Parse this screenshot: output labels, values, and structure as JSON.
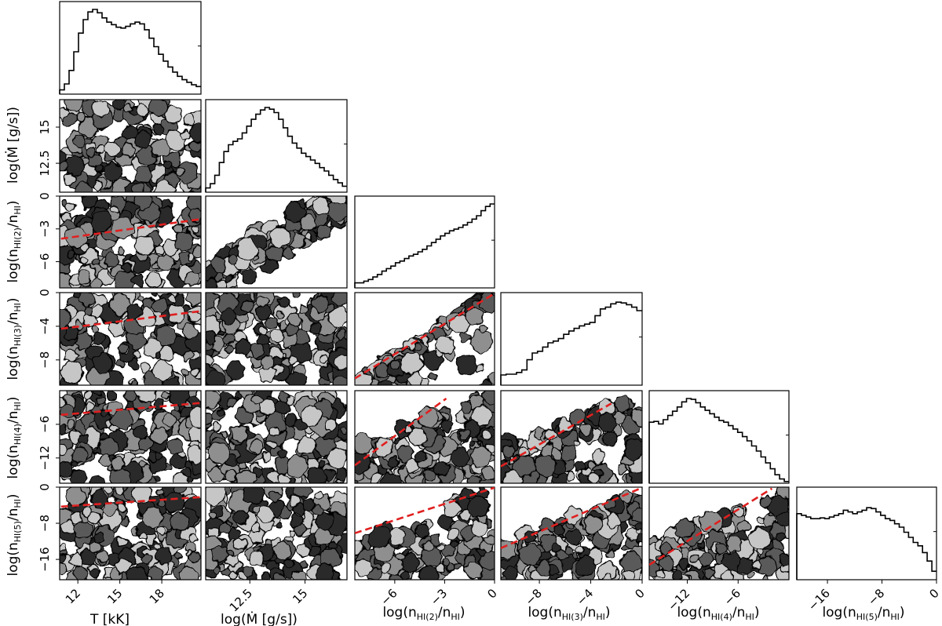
{
  "chart_data": {
    "type": "corner",
    "title": "",
    "parameters": [
      {
        "key": "T",
        "label": "T [kK]",
        "range": [
          10.7,
          20.8
        ],
        "ticks": [
          12,
          15,
          18
        ]
      },
      {
        "key": "Mdot",
        "label": "log(Ṁ [g/s])",
        "label_base": "log(",
        "label_sym": "Ṁ",
        "label_rest": " [g/s])",
        "range": [
          10.5,
          16.9
        ],
        "ticks": [
          12.5,
          15.0
        ]
      },
      {
        "key": "n2",
        "label": "log(nHI(2)/nHI)",
        "sub": "HI(2)",
        "range": [
          -8.4,
          0
        ],
        "ticks": [
          -6,
          -3,
          0
        ]
      },
      {
        "key": "n3",
        "label": "log(nHI(3)/nHI)",
        "sub": "HI(3)",
        "range": [
          -11,
          0
        ],
        "ticks": [
          -8,
          -4,
          0
        ]
      },
      {
        "key": "n4",
        "label": "log(nHI(4)/nHI)",
        "sub": "HI(4)",
        "range": [
          -16.5,
          0
        ],
        "ticks": [
          -12,
          -6
        ]
      },
      {
        "key": "n5",
        "label": "log(nHI(5)/nHI)",
        "sub": "HI(5)",
        "range": [
          -20.5,
          0
        ],
        "ticks": [
          -16,
          -8,
          0
        ]
      }
    ],
    "panel_y_ticks": {
      "Mdot": [
        12.5,
        15.0
      ],
      "n2": [
        0,
        -3,
        -6
      ],
      "n3": [
        0,
        -4,
        -8
      ],
      "n4": [
        -6,
        -12
      ],
      "n5": [
        0,
        -8,
        -16
      ]
    },
    "diagonal_histograms": {
      "T": [
        0.05,
        0.12,
        0.28,
        0.5,
        0.72,
        0.88,
        0.97,
        1.0,
        0.96,
        0.9,
        0.85,
        0.82,
        0.79,
        0.78,
        0.8,
        0.83,
        0.85,
        0.83,
        0.76,
        0.66,
        0.56,
        0.47,
        0.39,
        0.32,
        0.26,
        0.21,
        0.17,
        0.14,
        0.11,
        0.09
      ],
      "Mdot": [
        0.05,
        0.1,
        0.2,
        0.35,
        0.48,
        0.56,
        0.6,
        0.63,
        0.7,
        0.78,
        0.86,
        0.92,
        0.97,
        1.0,
        0.98,
        0.94,
        0.86,
        0.76,
        0.66,
        0.58,
        0.52,
        0.46,
        0.42,
        0.38,
        0.34,
        0.29,
        0.25,
        0.2,
        0.15,
        0.11,
        0.07
      ],
      "n2": [
        0.06,
        0.06,
        0.08,
        0.1,
        0.13,
        0.16,
        0.2,
        0.23,
        0.26,
        0.3,
        0.32,
        0.35,
        0.38,
        0.4,
        0.43,
        0.46,
        0.5,
        0.54,
        0.58,
        0.62,
        0.65,
        0.68,
        0.7,
        0.72,
        0.75,
        0.78,
        0.82,
        0.86,
        0.92,
        0.97,
        1.0
      ],
      "n3": [
        0.12,
        0.13,
        0.13,
        0.15,
        0.18,
        0.3,
        0.38,
        0.4,
        0.45,
        0.5,
        0.52,
        0.55,
        0.6,
        0.64,
        0.67,
        0.7,
        0.72,
        0.74,
        0.82,
        0.9,
        0.92,
        0.96,
        0.98,
        0.97,
        0.95,
        0.92,
        0.88
      ],
      "n4": [
        0.72,
        0.73,
        0.7,
        0.75,
        0.8,
        0.85,
        0.9,
        0.96,
        1.0,
        0.99,
        0.95,
        0.9,
        0.86,
        0.82,
        0.78,
        0.74,
        0.72,
        0.68,
        0.64,
        0.6,
        0.55,
        0.5,
        0.44,
        0.38,
        0.31,
        0.24,
        0.17,
        0.1,
        0.05,
        0.02
      ],
      "n5": [
        0.78,
        0.76,
        0.74,
        0.72,
        0.72,
        0.73,
        0.72,
        0.74,
        0.76,
        0.78,
        0.82,
        0.8,
        0.78,
        0.8,
        0.82,
        0.85,
        0.84,
        0.8,
        0.76,
        0.72,
        0.7,
        0.66,
        0.62,
        0.56,
        0.5,
        0.44,
        0.4,
        0.32,
        0.22,
        0.1
      ]
    },
    "reference_lines": {
      "color": "#e02020",
      "style": "dashed",
      "lines": [
        {
          "row": "n2",
          "col": "T",
          "points": [
            [
              10.8,
              -3.9
            ],
            [
              20.8,
              -2.1
            ]
          ]
        },
        {
          "row": "n3",
          "col": "T",
          "points": [
            [
              10.8,
              -4.3
            ],
            [
              20.8,
              -2.2
            ]
          ]
        },
        {
          "row": "n3",
          "col": "n2",
          "points": [
            [
              -8.4,
              -10.2
            ],
            [
              0,
              -0.1
            ]
          ]
        },
        {
          "row": "n4",
          "col": "T",
          "points": [
            [
              10.8,
              -4.3
            ],
            [
              20.8,
              -2.2
            ]
          ]
        },
        {
          "row": "n4",
          "col": "n2",
          "points": [
            [
              -8.4,
              -13.3
            ],
            [
              -2.9,
              -1.4
            ]
          ]
        },
        {
          "row": "n4",
          "col": "n3",
          "points": [
            [
              -11,
              -13.5
            ],
            [
              -2.4,
              -2.3
            ]
          ]
        },
        {
          "row": "n5",
          "col": "T",
          "points": [
            [
              10.8,
              -4.3
            ],
            [
              20.8,
              -2.2
            ]
          ]
        },
        {
          "row": "n5",
          "col": "n2",
          "points": [
            [
              -8.4,
              -10.2
            ],
            [
              0,
              -0.1
            ]
          ]
        },
        {
          "row": "n5",
          "col": "n3",
          "points": [
            [
              -11,
              -13.5
            ],
            [
              0,
              -0.1
            ]
          ]
        },
        {
          "row": "n5",
          "col": "n4",
          "points": [
            [
              -16.5,
              -17.2
            ],
            [
              -2.0,
              -0.3
            ]
          ]
        }
      ]
    },
    "contour_style": {
      "levels": [
        "#2a2a2a",
        "#5a5a5a",
        "#8f8f8f",
        "#c6c6c6"
      ],
      "outline": "#000000"
    }
  }
}
